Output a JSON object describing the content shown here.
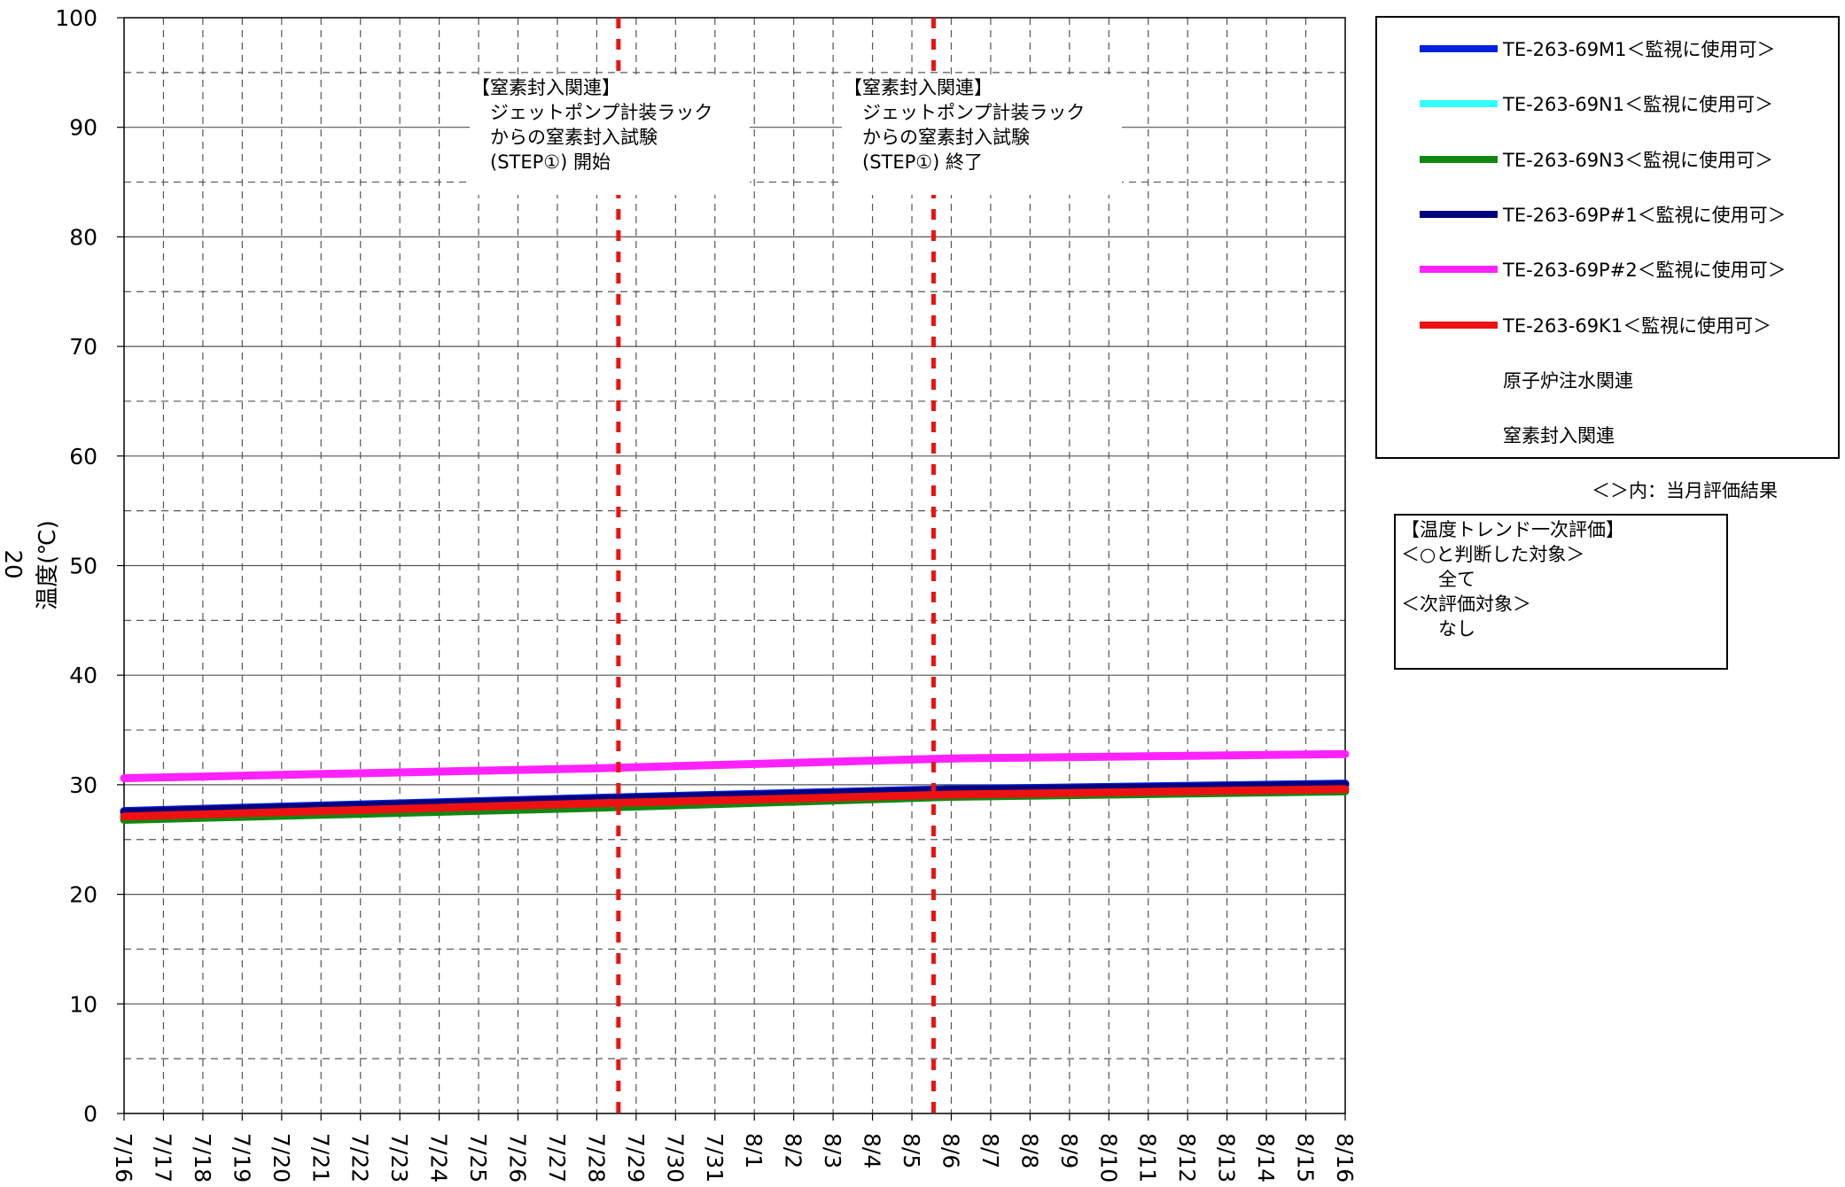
{
  "chart_data": {
    "type": "line",
    "ylabel": "温度(℃)",
    "ylabel_prefix": "20",
    "ylim": [
      0,
      100
    ],
    "y_ticks": [
      "0",
      "10",
      "20",
      "30",
      "40",
      "50",
      "60",
      "70",
      "80",
      "90",
      "100"
    ],
    "x_ticks": [
      "7/16",
      "7/17",
      "7/18",
      "7/19",
      "7/20",
      "7/21",
      "7/22",
      "7/23",
      "7/24",
      "7/25",
      "7/26",
      "7/27",
      "7/28",
      "7/29",
      "7/30",
      "7/31",
      "8/1",
      "8/2",
      "8/3",
      "8/4",
      "8/5",
      "8/6",
      "8/7",
      "8/8",
      "8/9",
      "8/10",
      "8/11",
      "8/12",
      "8/13",
      "8/14",
      "8/15",
      "8/16"
    ],
    "grid": true,
    "series": [
      {
        "name": "TE-263-69M1＜監視に使用可＞",
        "color": "#0022dd",
        "x": [
          "7/16",
          "7/28",
          "8/6",
          "8/16"
        ],
        "values": [
          27.6,
          28.8,
          29.6,
          30.1
        ]
      },
      {
        "name": "TE-263-69N1＜監視に使用可＞",
        "color": "#33ffff",
        "x": [
          "7/16",
          "7/28",
          "8/6",
          "8/16"
        ],
        "values": [
          27.3,
          28.5,
          29.3,
          29.8
        ]
      },
      {
        "name": "TE-263-69N3＜監視に使用可＞",
        "color": "#118811",
        "x": [
          "7/16",
          "7/28",
          "8/6",
          "8/16"
        ],
        "values": [
          26.8,
          27.9,
          28.9,
          29.4
        ]
      },
      {
        "name": "TE-263-69P#1＜監視に使用可＞",
        "color": "#000080",
        "x": [
          "7/16",
          "7/28",
          "8/6",
          "8/16"
        ],
        "values": [
          27.5,
          28.7,
          29.5,
          30.0
        ]
      },
      {
        "name": "TE-263-69P#2＜監視に使用可＞",
        "color": "#ff22ff",
        "x": [
          "7/16",
          "7/28",
          "8/6",
          "8/16"
        ],
        "values": [
          30.6,
          31.5,
          32.4,
          32.8
        ]
      },
      {
        "name": "TE-263-69K1＜監視に使用可＞",
        "color": "#ee1111",
        "x": [
          "7/16",
          "7/28",
          "8/6",
          "8/16"
        ],
        "values": [
          27.1,
          28.3,
          29.1,
          29.6
        ]
      }
    ],
    "markers": [
      {
        "x": "7/28",
        "color": "#ee1111",
        "label": "【窒素封入関連】\n　ジェットポンプ計装ラック\n　からの窒素封入試験\n　(STEP①) 開始"
      },
      {
        "x": "8/5",
        "color": "#ee1111",
        "label": "【窒素封入関連】\n　ジェットポンプ計装ラック\n　からの窒素封入試験\n　(STEP①) 終了"
      }
    ],
    "legend_extra": [
      {
        "name": "原子炉注水関連",
        "color": "#0022dd",
        "style": "dashed"
      },
      {
        "name": "窒素封入関連",
        "color": "#ee1111",
        "style": "dashed"
      }
    ]
  },
  "legend_note": "＜＞内：当月評価結果",
  "evaluation": {
    "lines": [
      "【温度トレンド一次評価】",
      "＜○と判断した対象＞",
      "　　全て",
      "＜次評価対象＞",
      "　　なし"
    ]
  }
}
